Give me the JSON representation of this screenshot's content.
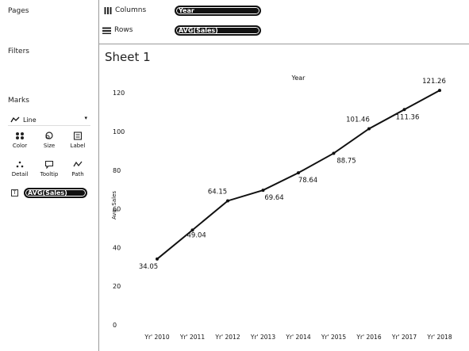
{
  "left_panel": {
    "pages_title": "Pages",
    "filters_title": "Filters",
    "marks_title": "Marks",
    "marks_type": "Line",
    "mark_buttons": [
      {
        "label": "Color",
        "icon": "color-icon"
      },
      {
        "label": "Size",
        "icon": "size-icon"
      },
      {
        "label": "Label",
        "icon": "label-icon"
      },
      {
        "label": "Detail",
        "icon": "detail-icon"
      },
      {
        "label": "Tooltip",
        "icon": "tooltip-icon"
      },
      {
        "label": "Path",
        "icon": "path-icon"
      }
    ],
    "marks_pill": "AVG(Sales)"
  },
  "shelves": {
    "columns_label": "Columns",
    "columns_pill": "Year",
    "rows_label": "Rows",
    "rows_pill": "AVG(Sales)"
  },
  "sheet": {
    "title": "Sheet 1"
  },
  "chart_data": {
    "type": "line",
    "title": "Year",
    "xlabel": "",
    "ylabel": "Avg. Sales",
    "categories": [
      "Yr' 2010",
      "Yr' 2011",
      "Yr' 2012",
      "Yr' 2013",
      "Yr' 2014",
      "Yr' 2015",
      "Yr' 2016",
      "Yr' 2017",
      "Yr' 2018"
    ],
    "values": [
      34.05,
      49.04,
      64.15,
      69.64,
      78.64,
      88.75,
      101.46,
      111.36,
      121.26
    ],
    "data_labels": [
      "34.05",
      "49.04",
      "64.15",
      "69.64",
      "78.64",
      "88.75",
      "101.46",
      "111.36",
      "121.26"
    ],
    "yticks": [
      "0",
      "20",
      "40",
      "60",
      "80",
      "100",
      "120"
    ],
    "ylim": [
      0,
      130
    ],
    "grid": false,
    "line_color": "#111111"
  }
}
